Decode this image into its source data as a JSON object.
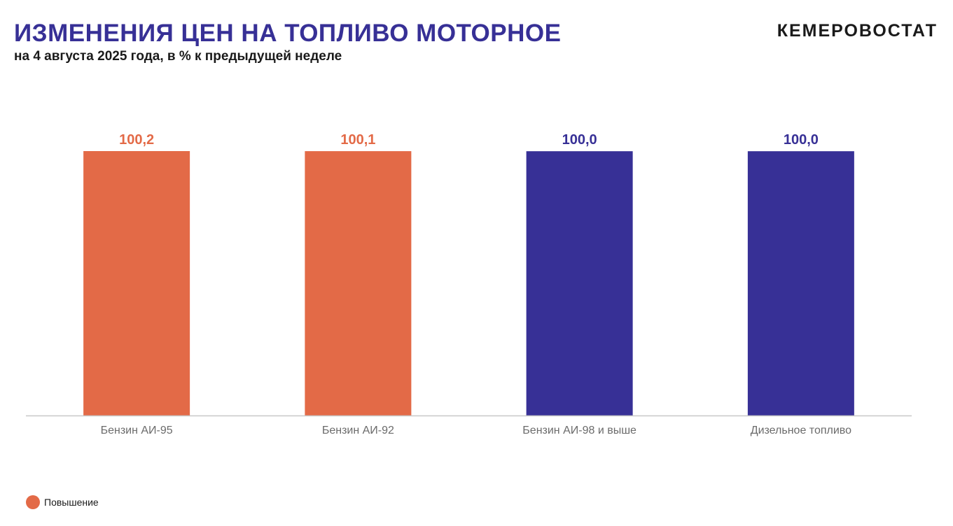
{
  "header": {
    "title": "ИЗМЕНЕНИЯ ЦЕН НА ТОПЛИВО МОТОРНОЕ",
    "subtitle": "на 4 августа 2025 года, в % к предыдущей неделе",
    "brand": "КЕМЕРОВОСТАТ"
  },
  "colors": {
    "increase": "#E36A47",
    "no_change": "#373096",
    "title": "#373096",
    "axis": "#c8c8c8",
    "tick_label": "#6b6b6b"
  },
  "chart_data": {
    "type": "bar",
    "title": "ИЗМЕНЕНИЯ ЦЕН НА ТОПЛИВО МОТОРНОЕ",
    "subtitle": "на 4 августа 2025 года, в % к предыдущей неделе",
    "categories": [
      "Бензин АИ-95",
      "Бензин АИ-92",
      "Бензин АИ-98 и выше",
      "Дизельное топливо"
    ],
    "values": [
      100.2,
      100.1,
      100.0,
      100.0
    ],
    "data_labels": [
      "100,2",
      "100,1",
      "100,0",
      "100,0"
    ],
    "bar_status": [
      "increase",
      "increase",
      "no_change",
      "no_change"
    ],
    "xlabel": "",
    "ylabel": "",
    "y_axis_visible": false,
    "grid": false,
    "legend_position": "bottom-left"
  },
  "legend": [
    {
      "label": "Повышение",
      "color": "#E36A47"
    }
  ]
}
